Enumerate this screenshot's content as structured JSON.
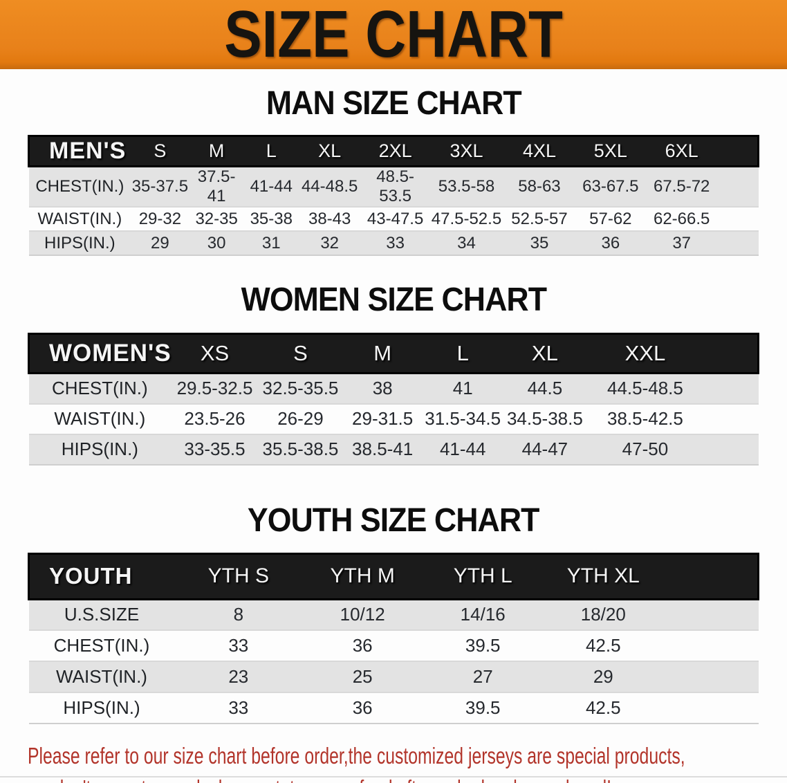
{
  "banner": {
    "title": "SIZE CHART"
  },
  "colors": {
    "banner_orange": "#E8811A",
    "table_header_black": "#1B1B1B",
    "row_stripe_gray": "#E3E3E3",
    "disclaimer_red": "#B2342A"
  },
  "sections": [
    {
      "heading": "MAN SIZE CHART",
      "table": {
        "corner_label": "MEN'S",
        "columns": [
          "S",
          "M",
          "L",
          "XL",
          "2XL",
          "3XL",
          "4XL",
          "5XL",
          "6XL"
        ],
        "rows": [
          {
            "label": "CHEST(IN.)",
            "values": [
              "35-37.5",
              "37.5-41",
              "41-44",
              "44-48.5",
              "48.5-53.5",
              "53.5-58",
              "58-63",
              "63-67.5",
              "67.5-72"
            ]
          },
          {
            "label": "WAIST(IN.)",
            "values": [
              "29-32",
              "32-35",
              "35-38",
              "38-43",
              "43-47.5",
              "47.5-52.5",
              "52.5-57",
              "57-62",
              "62-66.5"
            ]
          },
          {
            "label": "HIPS(IN.)",
            "values": [
              "29",
              "30",
              "31",
              "32",
              "33",
              "34",
              "35",
              "36",
              "37"
            ]
          }
        ]
      }
    },
    {
      "heading": "WOMEN SIZE CHART",
      "table": {
        "corner_label": "WOMEN'S",
        "columns": [
          "XS",
          "S",
          "M",
          "L",
          "XL",
          "XXL"
        ],
        "rows": [
          {
            "label": "CHEST(IN.)",
            "values": [
              "29.5-32.5",
              "32.5-35.5",
              "38",
              "41",
              "44.5",
              "44.5-48.5"
            ]
          },
          {
            "label": "WAIST(IN.)",
            "values": [
              "23.5-26",
              "26-29",
              "29-31.5",
              "31.5-34.5",
              "34.5-38.5",
              "38.5-42.5"
            ]
          },
          {
            "label": "HIPS(IN.)",
            "values": [
              "33-35.5",
              "35.5-38.5",
              "38.5-41",
              "41-44",
              "44-47",
              "47-50"
            ]
          }
        ]
      }
    },
    {
      "heading": "YOUTH SIZE CHART",
      "table": {
        "corner_label": "YOUTH",
        "columns": [
          "YTH S",
          "YTH M",
          "YTH L",
          "YTH XL"
        ],
        "rows": [
          {
            "label": "U.S.SIZE",
            "values": [
              "8",
              "10/12",
              "14/16",
              "18/20"
            ]
          },
          {
            "label": "CHEST(IN.)",
            "values": [
              "33",
              "36",
              "39.5",
              "42.5"
            ]
          },
          {
            "label": "WAIST(IN.)",
            "values": [
              "23",
              "25",
              "27",
              "29"
            ]
          },
          {
            "label": "HIPS(IN.)",
            "values": [
              "33",
              "36",
              "39.5",
              "42.5"
            ]
          }
        ]
      }
    }
  ],
  "disclaimer": {
    "line1": "Please refer to our size chart before order,the customized jerseys are special products,",
    "line2": "we don't accept cancel, change, teturn or refund after order has been placed!"
  }
}
